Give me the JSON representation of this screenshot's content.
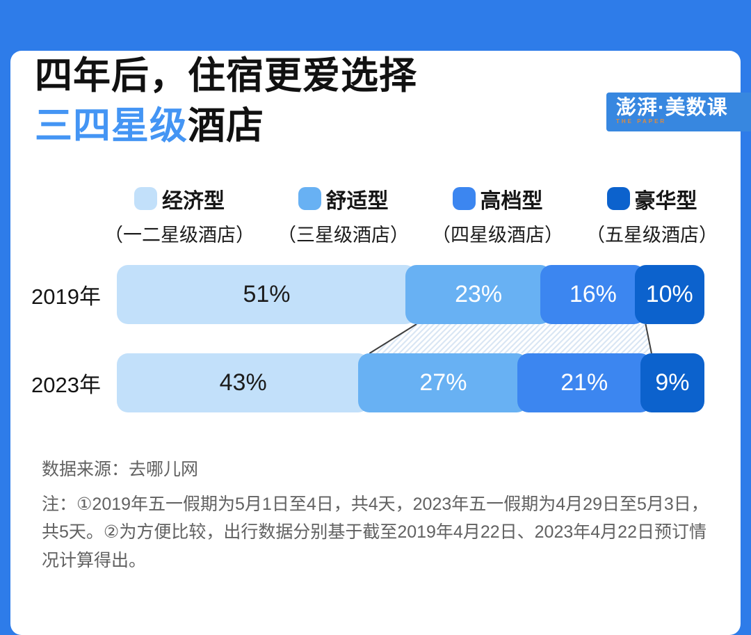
{
  "header": {
    "title_line1": "四年后，住宿更爱选择",
    "title_line2_highlight": "三四星级",
    "title_line2_rest": "酒店",
    "logo_main": "澎湃·美数课",
    "logo_sub": "THE PAPER"
  },
  "colors": {
    "frame": "#2e7ce9",
    "logo_bg": "#3787e0",
    "title_highlight": "#4495f4",
    "connector_line": "#3d3d3d",
    "hatch_stripe": "#d9e6f4"
  },
  "chart_data": {
    "type": "bar",
    "variant": "horizontal-stacked",
    "unit": "%",
    "categories": [
      "2019年",
      "2023年"
    ],
    "series": [
      {
        "name": "经济型",
        "sub": "（一二星级酒店）",
        "color": "#c2e0fa",
        "text_color": "#1c1c1c",
        "values": [
          51,
          43
        ]
      },
      {
        "name": "舒适型",
        "sub": "（三星级酒店）",
        "color": "#68b1f3",
        "text_color": "#ffffff",
        "values": [
          23,
          27
        ]
      },
      {
        "name": "高档型",
        "sub": "（四星级酒店）",
        "color": "#3c86f0",
        "text_color": "#ffffff",
        "values": [
          16,
          21
        ]
      },
      {
        "name": "豪华型",
        "sub": "（五星级酒店）",
        "color": "#0c62cd",
        "text_color": "#ffffff",
        "values": [
          10,
          9
        ]
      }
    ],
    "highlight_band": {
      "description": "hatched band connecting the 舒适型+高档型 (三四星级) segments of both bars",
      "from_series_index": 1,
      "to_series_index": 2,
      "top_share_start": 51,
      "top_share_end": 90,
      "bottom_share_start": 43,
      "bottom_share_end": 91
    },
    "legend_position": "top",
    "value_labels": "inside"
  },
  "footer": {
    "source": "数据来源：去哪儿网",
    "note": "注：①2019年五一假期为5月1日至4日，共4天，2023年五一假期为4月29日至5月3日，共5天。②为方便比较，出行数据分别基于截至2019年4月22日、2023年4月22日预订情况计算得出。"
  }
}
